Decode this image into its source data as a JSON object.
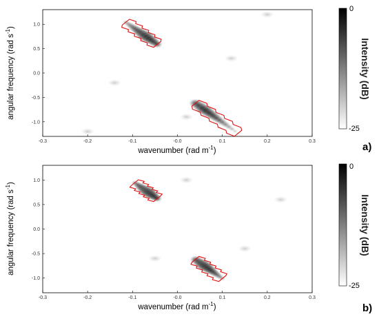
{
  "chart_data": [
    {
      "panel_label": "a)",
      "type": "heatmap",
      "xlabel": "wavenumber (rad m",
      "xlabel_sup": "-1",
      "xlabel_close": ")",
      "ylabel": "angular frequency (rad s",
      "ylabel_sup": "-1",
      "ylabel_close": ")",
      "xlim": [
        -0.3,
        0.3
      ],
      "ylim": [
        -1.3,
        1.3
      ],
      "xticks": [
        "-0.3",
        "-0.2",
        "-0.1",
        "-0.0",
        "0.1",
        "0.2",
        "0.3"
      ],
      "yticks": [
        "1.0",
        "0.5",
        "0.0",
        "-0.5",
        "-1.0"
      ],
      "colorbar": {
        "label": "Intensity (dB)",
        "max": "0",
        "min": "-25"
      },
      "branches": [
        {
          "center": [
            -0.07,
            0.75
          ],
          "slope": -6.5,
          "from_x": -0.115,
          "to_x": -0.045
        },
        {
          "center": [
            0.06,
            -0.75
          ],
          "slope": -6.5,
          "from_x": 0.04,
          "to_x": 0.135
        }
      ],
      "faint_features": [
        [
          -0.2,
          -1.2
        ],
        [
          0.2,
          1.2
        ],
        [
          -0.14,
          -0.2
        ],
        [
          0.02,
          -0.9
        ],
        [
          0.12,
          0.3
        ]
      ]
    },
    {
      "panel_label": "b)",
      "type": "heatmap",
      "xlabel": "wavenumber (rad m",
      "xlabel_sup": "-1",
      "xlabel_close": ")",
      "ylabel": "angular frequency (rad s",
      "ylabel_sup": "-1",
      "ylabel_close": ")",
      "xlim": [
        -0.3,
        0.3
      ],
      "ylim": [
        -1.3,
        1.3
      ],
      "xticks": [
        "-0.3",
        "-0.2",
        "-0.1",
        "-0.0",
        "0.1",
        "0.2",
        "0.3"
      ],
      "yticks": [
        "1.0",
        "0.5",
        "0.0",
        "-0.5",
        "-1.0"
      ],
      "colorbar": {
        "label": "Intensity (dB)",
        "max": "0",
        "min": "-25"
      },
      "branches": [
        {
          "center": [
            -0.065,
            0.75
          ],
          "slope": -6.5,
          "from_x": -0.095,
          "to_x": -0.045
        },
        {
          "center": [
            0.06,
            -0.75
          ],
          "slope": -6.5,
          "from_x": 0.04,
          "to_x": 0.1
        }
      ],
      "faint_features": [
        [
          0.02,
          1.0
        ],
        [
          -0.05,
          -0.6
        ],
        [
          0.15,
          -0.4
        ],
        [
          0.23,
          0.6
        ]
      ]
    }
  ]
}
